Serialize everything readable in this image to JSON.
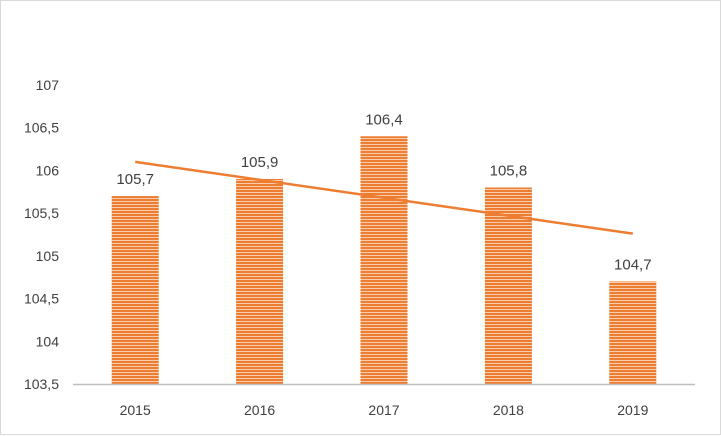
{
  "chart_data": {
    "type": "bar",
    "title": "",
    "xlabel": "",
    "ylabel": "",
    "categories": [
      "2015",
      "2016",
      "2017",
      "2018",
      "2019"
    ],
    "values": [
      105.7,
      105.9,
      106.4,
      105.8,
      104.7
    ],
    "value_labels": [
      "105,7",
      "105,9",
      "106,4",
      "105,8",
      "104,7"
    ],
    "ylim": [
      103.5,
      107
    ],
    "yticks": [
      103.5,
      104,
      104.5,
      105,
      105.5,
      106,
      106.5,
      107
    ],
    "ytick_labels": [
      "103,5",
      "104",
      "104,5",
      "105",
      "105,5",
      "106",
      "106,5",
      "107"
    ],
    "trendline": {
      "type": "linear",
      "start": 106.1,
      "end": 105.26
    },
    "grid": false,
    "legend": "none",
    "colors": {
      "bar": "#ED7D31",
      "bar_stripe": "#F8CBAD",
      "trend": "#ED7D31",
      "axis": "#BFBFBF",
      "text": "#404040"
    }
  }
}
